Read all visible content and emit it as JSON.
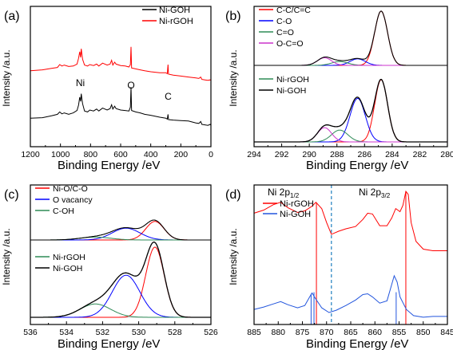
{
  "chart_data": [
    {
      "panel": "(a)",
      "type": "line",
      "xlabel": "Binding Energy /eV",
      "ylabel": "Intensity /a.u.",
      "xlim": [
        1200,
        0
      ],
      "xticks": [
        1200,
        1000,
        800,
        600,
        400,
        200,
        0
      ],
      "annotations": [
        {
          "text": "Ni",
          "x": 868,
          "y": 113
        },
        {
          "text": "O",
          "x": 531,
          "y": 108
        },
        {
          "text": "C",
          "x": 284,
          "y": 85
        }
      ],
      "legend": "top-right",
      "series": [
        {
          "name": "Ni-GOH",
          "color": "#000000",
          "points": [
            [
              1200,
              53
            ],
            [
              1120,
              54
            ],
            [
              1060,
              58
            ],
            [
              1020,
              61
            ],
            [
              1005,
              66
            ],
            [
              990,
              62
            ],
            [
              975,
              64
            ],
            [
              945,
              61
            ],
            [
              915,
              64
            ],
            [
              890,
              69
            ],
            [
              880,
              80
            ],
            [
              872,
              97
            ],
            [
              866,
              88
            ],
            [
              862,
              104
            ],
            [
              857,
              92
            ],
            [
              853,
              83
            ],
            [
              840,
              68
            ],
            [
              820,
              66
            ],
            [
              805,
              70
            ],
            [
              780,
              68
            ],
            [
              760,
              72
            ],
            [
              745,
              68
            ],
            [
              720,
              74
            ],
            [
              690,
              70
            ],
            [
              670,
              73
            ],
            [
              660,
              81
            ],
            [
              652,
              72
            ],
            [
              640,
              78
            ],
            [
              630,
              73
            ],
            [
              600,
              70
            ],
            [
              570,
              69
            ],
            [
              545,
              68
            ],
            [
              535,
              76
            ],
            [
              531,
              118
            ],
            [
              527,
              69
            ],
            [
              500,
              66
            ],
            [
              470,
              64
            ],
            [
              440,
              61
            ],
            [
              400,
              59
            ],
            [
              340,
              55
            ],
            [
              300,
              53
            ],
            [
              290,
              51
            ],
            [
              285,
              61
            ],
            [
              282,
              50
            ],
            [
              250,
              49
            ],
            [
              200,
              48
            ],
            [
              150,
              47
            ],
            [
              100,
              43
            ],
            [
              80,
              42
            ],
            [
              68,
              46
            ],
            [
              60,
              40
            ],
            [
              40,
              39
            ],
            [
              20,
              38
            ],
            [
              5,
              40
            ],
            [
              0,
              38
            ]
          ]
        },
        {
          "name": "Ni-rGOH",
          "color": "#ff0000",
          "points": [
            [
              1200,
              152
            ],
            [
              1120,
              154
            ],
            [
              1060,
              157
            ],
            [
              1020,
              159
            ],
            [
              1005,
              165
            ],
            [
              990,
              162
            ],
            [
              975,
              164
            ],
            [
              945,
              161
            ],
            [
              915,
              162
            ],
            [
              890,
              166
            ],
            [
              880,
              178
            ],
            [
              872,
              192
            ],
            [
              866,
              180
            ],
            [
              862,
              198
            ],
            [
              857,
              186
            ],
            [
              853,
              176
            ],
            [
              840,
              164
            ],
            [
              820,
              162
            ],
            [
              805,
              165
            ],
            [
              780,
              163
            ],
            [
              760,
              166
            ],
            [
              745,
              162
            ],
            [
              720,
              168
            ],
            [
              690,
              164
            ],
            [
              670,
              166
            ],
            [
              660,
              174
            ],
            [
              652,
              164
            ],
            [
              640,
              170
            ],
            [
              630,
              166
            ],
            [
              600,
              163
            ],
            [
              570,
              162
            ],
            [
              545,
              160
            ],
            [
              535,
              165
            ],
            [
              531,
              202
            ],
            [
              527,
              158
            ],
            [
              500,
              156
            ],
            [
              470,
              154
            ],
            [
              440,
              152
            ],
            [
              400,
              150
            ],
            [
              340,
              148
            ],
            [
              300,
              148
            ],
            [
              290,
              146
            ],
            [
              285,
              165
            ],
            [
              282,
              145
            ],
            [
              250,
              143
            ],
            [
              200,
              141
            ],
            [
              150,
              139
            ],
            [
              100,
              137
            ],
            [
              80,
              136
            ],
            [
              68,
              139
            ],
            [
              60,
              134
            ],
            [
              40,
              133
            ],
            [
              20,
              132
            ],
            [
              5,
              133
            ],
            [
              0,
              132
            ]
          ]
        }
      ]
    },
    {
      "panel": "(b)",
      "type": "line",
      "xlabel": "Binding Energy /eV",
      "ylabel": "Intensity /a.u.",
      "xlim": [
        294,
        280
      ],
      "xticks": [
        294,
        292,
        290,
        288,
        286,
        284,
        282,
        280
      ],
      "legend_top": [
        "C-C/C=C",
        "C-O",
        "C=O",
        "O-C=O"
      ],
      "legend_bottom": [
        "Ni-rGOH",
        "Ni-GOH"
      ],
      "components": [
        {
          "name": "C-C/C=C",
          "color": "#ff0000",
          "center": 284.8,
          "fwhm": 1.1,
          "height_rGOH": 100,
          "height_GOH": 100
        },
        {
          "name": "C-O",
          "color": "#0000ff",
          "center": 286.5,
          "fwhm": 1.3,
          "height_rGOH": 12,
          "height_GOH": 70
        },
        {
          "name": "C=O",
          "color": "#2e8b57",
          "center": 287.8,
          "fwhm": 1.4,
          "height_rGOH": 7,
          "height_GOH": 19
        },
        {
          "name": "O-C=O",
          "color": "#cc33cc",
          "center": 288.9,
          "fwhm": 1.2,
          "height_rGOH": 14,
          "height_GOH": 23
        }
      ],
      "series": [
        {
          "name": "Ni-rGOH",
          "color": "#2e8b57"
        },
        {
          "name": "Ni-GOH",
          "color": "#000000"
        }
      ]
    },
    {
      "panel": "(c)",
      "type": "line",
      "xlabel": "Binding Energy /eV",
      "ylabel": "Intensity /a.u.",
      "xlim": [
        536,
        526
      ],
      "xticks": [
        536,
        534,
        532,
        530,
        528,
        526
      ],
      "legend_top": [
        "Ni-O/C-O",
        "O vacancy",
        "C-OH"
      ],
      "legend_bottom": [
        "Ni-rGOH",
        "Ni-GOH"
      ],
      "components": [
        {
          "name": "Ni-O/C-O",
          "color": "#ff0000",
          "center": 529.1,
          "fwhm": 1.2,
          "height_rGOH": 58,
          "height_GOH": 100
        },
        {
          "name": "O vacancy",
          "color": "#0000ff",
          "center": 530.7,
          "fwhm": 1.8,
          "height_rGOH": 37,
          "height_GOH": 60
        },
        {
          "name": "C-OH",
          "color": "#2e8b57",
          "center": 532.4,
          "fwhm": 2.0,
          "height_rGOH": 9,
          "height_GOH": 19
        }
      ],
      "series": [
        {
          "name": "Ni-rGOH",
          "color": "#2e8b57"
        },
        {
          "name": "Ni-GOH",
          "color": "#000000"
        }
      ]
    },
    {
      "panel": "(d)",
      "type": "line",
      "xlabel": "Binding Energy /eV",
      "ylabel": "Intensity /a.u.",
      "xlim": [
        885,
        845
      ],
      "xticks": [
        885,
        880,
        875,
        870,
        865,
        860,
        855,
        850,
        845
      ],
      "annotations": [
        {
          "text": "Ni 2p",
          "sub": "1/2",
          "x": 874
        },
        {
          "text": "Ni 2p",
          "sub": "3/2",
          "x": 861
        }
      ],
      "divider_x": 869,
      "legend": "top-left",
      "series": [
        {
          "name": "Ni-rGOH",
          "color": "#ff0000",
          "marker_x": 872.1,
          "points": [
            [
              885,
              72
            ],
            [
              883,
              76
            ],
            [
              881,
              83
            ],
            [
              879.5,
              86
            ],
            [
              878,
              79
            ],
            [
              876,
              73
            ],
            [
              874.5,
              75
            ],
            [
              873,
              81
            ],
            [
              872.2,
              86
            ],
            [
              871,
              78
            ],
            [
              870,
              60
            ],
            [
              869,
              45
            ],
            [
              867.5,
              49
            ],
            [
              866,
              52
            ],
            [
              864,
              55
            ],
            [
              862.5,
              64
            ],
            [
              861.5,
              72
            ],
            [
              860.5,
              71
            ],
            [
              859,
              56
            ],
            [
              857.5,
              56
            ],
            [
              856.5,
              66
            ],
            [
              855.7,
              78
            ],
            [
              854.8,
              74
            ],
            [
              854.2,
              82
            ],
            [
              853.6,
              100
            ],
            [
              853.1,
              96
            ],
            [
              852.5,
              60
            ],
            [
              851.5,
              36
            ],
            [
              850,
              26
            ],
            [
              848,
              24
            ],
            [
              845,
              24
            ]
          ]
        },
        {
          "name": "Ni-GOH",
          "color": "#2255dd",
          "marker_x": 873.2,
          "markers_x": [
            872.6,
            855.6
          ],
          "points": [
            [
              885,
              4
            ],
            [
              883,
              7
            ],
            [
              881,
              11
            ],
            [
              879.5,
              14
            ],
            [
              878,
              10
            ],
            [
              876,
              6
            ],
            [
              874.5,
              9
            ],
            [
              873.5,
              20
            ],
            [
              873,
              25
            ],
            [
              872.3,
              18
            ],
            [
              871,
              6
            ],
            [
              869.5,
              0
            ],
            [
              868,
              3
            ],
            [
              866,
              9
            ],
            [
              864,
              16
            ],
            [
              862.5,
              23
            ],
            [
              861.5,
              24
            ],
            [
              860.5,
              20
            ],
            [
              859,
              12
            ],
            [
              857.5,
              15
            ],
            [
              856.7,
              32
            ],
            [
              856,
              47
            ],
            [
              855.4,
              39
            ],
            [
              854.8,
              20
            ],
            [
              853.5,
              4
            ],
            [
              852,
              -4
            ],
            [
              850,
              -6
            ],
            [
              848,
              -5
            ],
            [
              845,
              -5
            ]
          ]
        }
      ]
    }
  ]
}
